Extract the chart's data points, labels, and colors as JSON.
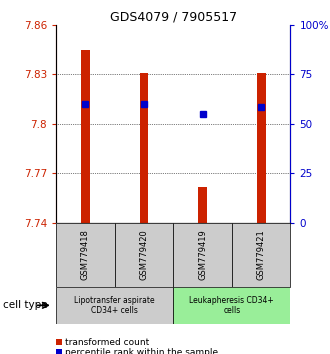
{
  "title": "GDS4079 / 7905517",
  "samples": [
    "GSM779418",
    "GSM779420",
    "GSM779419",
    "GSM779421"
  ],
  "bar_values": [
    7.845,
    7.831,
    7.762,
    7.831
  ],
  "bar_bottom": 7.74,
  "percentile_values": [
    0.6,
    0.6,
    0.55,
    0.585
  ],
  "ylim_left": [
    7.74,
    7.86
  ],
  "ylim_right": [
    0,
    1.0
  ],
  "yticks_left": [
    7.74,
    7.77,
    7.8,
    7.83,
    7.86
  ],
  "ytick_labels_left": [
    "7.74",
    "7.77",
    "7.8",
    "7.83",
    "7.86"
  ],
  "yticks_right": [
    0,
    0.25,
    0.5,
    0.75,
    1.0
  ],
  "ytick_labels_right": [
    "0",
    "25",
    "50",
    "75",
    "100%"
  ],
  "bar_color": "#cc2200",
  "dot_color": "#0000cc",
  "group_labels": [
    "Lipotransfer aspirate\nCD34+ cells",
    "Leukapheresis CD34+\ncells"
  ],
  "group_colors": [
    "#cccccc",
    "#99ee99"
  ],
  "group_ranges": [
    [
      0,
      2
    ],
    [
      2,
      4
    ]
  ],
  "cell_type_label": "cell type",
  "legend_items": [
    "transformed count",
    "percentile rank within the sample"
  ],
  "legend_colors": [
    "#cc2200",
    "#0000cc"
  ],
  "bar_width": 0.15,
  "background_color": "#ffffff"
}
